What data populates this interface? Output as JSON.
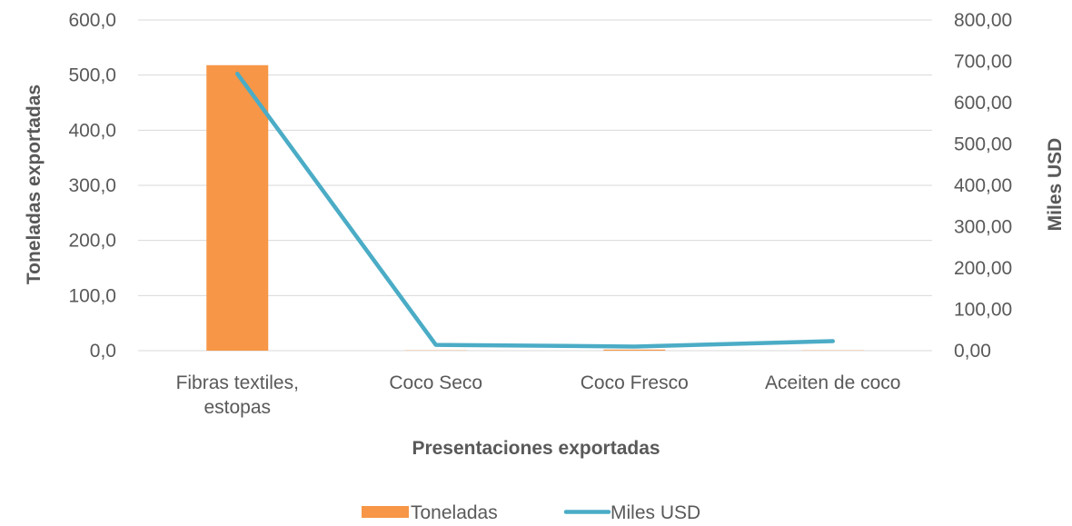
{
  "chart_data": {
    "type": "bar",
    "categories": [
      [
        "Fibras textiles,",
        "estopas"
      ],
      [
        "Coco Seco"
      ],
      [
        "Coco Fresco"
      ],
      [
        "Aceiten de coco"
      ]
    ],
    "series": [
      {
        "name": "Toneladas",
        "type": "bar",
        "axis": "left",
        "color": "#F79646",
        "values": [
          518,
          0.5,
          2,
          0.5
        ]
      },
      {
        "name": "Miles USD",
        "type": "line",
        "axis": "right",
        "color": "#4BACC6",
        "values": [
          670,
          14,
          10,
          23
        ]
      }
    ],
    "xlabel": "Presentaciones exportadas",
    "ylabel": "Toneladas exportadas",
    "y2label": "Miles  USD",
    "ylim": [
      0,
      600
    ],
    "y2lim": [
      0,
      800
    ],
    "yticks": [
      "0,0",
      "100,0",
      "200,0",
      "300,0",
      "400,0",
      "500,0",
      "600,0"
    ],
    "y2ticks": [
      "0,00",
      "100,00",
      "200,00",
      "300,00",
      "400,00",
      "500,00",
      "600,00",
      "700,00",
      "800,00"
    ],
    "grid": true,
    "legend": "bottom"
  }
}
